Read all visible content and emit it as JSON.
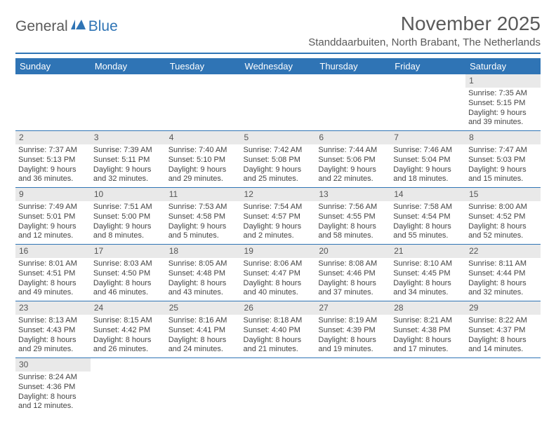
{
  "logo": {
    "part1": "General",
    "part2": "Blue"
  },
  "title": "November 2025",
  "location": "Standdaarbuiten, North Brabant, The Netherlands",
  "colors": {
    "accent": "#2f74b5",
    "headerRow": "#e9e9e9",
    "text": "#444"
  },
  "weekdays": [
    "Sunday",
    "Monday",
    "Tuesday",
    "Wednesday",
    "Thursday",
    "Friday",
    "Saturday"
  ],
  "weeks": [
    [
      null,
      null,
      null,
      null,
      null,
      null,
      {
        "n": "1",
        "sr": "Sunrise: 7:35 AM",
        "ss": "Sunset: 5:15 PM",
        "d1": "Daylight: 9 hours",
        "d2": "and 39 minutes."
      }
    ],
    [
      {
        "n": "2",
        "sr": "Sunrise: 7:37 AM",
        "ss": "Sunset: 5:13 PM",
        "d1": "Daylight: 9 hours",
        "d2": "and 36 minutes."
      },
      {
        "n": "3",
        "sr": "Sunrise: 7:39 AM",
        "ss": "Sunset: 5:11 PM",
        "d1": "Daylight: 9 hours",
        "d2": "and 32 minutes."
      },
      {
        "n": "4",
        "sr": "Sunrise: 7:40 AM",
        "ss": "Sunset: 5:10 PM",
        "d1": "Daylight: 9 hours",
        "d2": "and 29 minutes."
      },
      {
        "n": "5",
        "sr": "Sunrise: 7:42 AM",
        "ss": "Sunset: 5:08 PM",
        "d1": "Daylight: 9 hours",
        "d2": "and 25 minutes."
      },
      {
        "n": "6",
        "sr": "Sunrise: 7:44 AM",
        "ss": "Sunset: 5:06 PM",
        "d1": "Daylight: 9 hours",
        "d2": "and 22 minutes."
      },
      {
        "n": "7",
        "sr": "Sunrise: 7:46 AM",
        "ss": "Sunset: 5:04 PM",
        "d1": "Daylight: 9 hours",
        "d2": "and 18 minutes."
      },
      {
        "n": "8",
        "sr": "Sunrise: 7:47 AM",
        "ss": "Sunset: 5:03 PM",
        "d1": "Daylight: 9 hours",
        "d2": "and 15 minutes."
      }
    ],
    [
      {
        "n": "9",
        "sr": "Sunrise: 7:49 AM",
        "ss": "Sunset: 5:01 PM",
        "d1": "Daylight: 9 hours",
        "d2": "and 12 minutes."
      },
      {
        "n": "10",
        "sr": "Sunrise: 7:51 AM",
        "ss": "Sunset: 5:00 PM",
        "d1": "Daylight: 9 hours",
        "d2": "and 8 minutes."
      },
      {
        "n": "11",
        "sr": "Sunrise: 7:53 AM",
        "ss": "Sunset: 4:58 PM",
        "d1": "Daylight: 9 hours",
        "d2": "and 5 minutes."
      },
      {
        "n": "12",
        "sr": "Sunrise: 7:54 AM",
        "ss": "Sunset: 4:57 PM",
        "d1": "Daylight: 9 hours",
        "d2": "and 2 minutes."
      },
      {
        "n": "13",
        "sr": "Sunrise: 7:56 AM",
        "ss": "Sunset: 4:55 PM",
        "d1": "Daylight: 8 hours",
        "d2": "and 58 minutes."
      },
      {
        "n": "14",
        "sr": "Sunrise: 7:58 AM",
        "ss": "Sunset: 4:54 PM",
        "d1": "Daylight: 8 hours",
        "d2": "and 55 minutes."
      },
      {
        "n": "15",
        "sr": "Sunrise: 8:00 AM",
        "ss": "Sunset: 4:52 PM",
        "d1": "Daylight: 8 hours",
        "d2": "and 52 minutes."
      }
    ],
    [
      {
        "n": "16",
        "sr": "Sunrise: 8:01 AM",
        "ss": "Sunset: 4:51 PM",
        "d1": "Daylight: 8 hours",
        "d2": "and 49 minutes."
      },
      {
        "n": "17",
        "sr": "Sunrise: 8:03 AM",
        "ss": "Sunset: 4:50 PM",
        "d1": "Daylight: 8 hours",
        "d2": "and 46 minutes."
      },
      {
        "n": "18",
        "sr": "Sunrise: 8:05 AM",
        "ss": "Sunset: 4:48 PM",
        "d1": "Daylight: 8 hours",
        "d2": "and 43 minutes."
      },
      {
        "n": "19",
        "sr": "Sunrise: 8:06 AM",
        "ss": "Sunset: 4:47 PM",
        "d1": "Daylight: 8 hours",
        "d2": "and 40 minutes."
      },
      {
        "n": "20",
        "sr": "Sunrise: 8:08 AM",
        "ss": "Sunset: 4:46 PM",
        "d1": "Daylight: 8 hours",
        "d2": "and 37 minutes."
      },
      {
        "n": "21",
        "sr": "Sunrise: 8:10 AM",
        "ss": "Sunset: 4:45 PM",
        "d1": "Daylight: 8 hours",
        "d2": "and 34 minutes."
      },
      {
        "n": "22",
        "sr": "Sunrise: 8:11 AM",
        "ss": "Sunset: 4:44 PM",
        "d1": "Daylight: 8 hours",
        "d2": "and 32 minutes."
      }
    ],
    [
      {
        "n": "23",
        "sr": "Sunrise: 8:13 AM",
        "ss": "Sunset: 4:43 PM",
        "d1": "Daylight: 8 hours",
        "d2": "and 29 minutes."
      },
      {
        "n": "24",
        "sr": "Sunrise: 8:15 AM",
        "ss": "Sunset: 4:42 PM",
        "d1": "Daylight: 8 hours",
        "d2": "and 26 minutes."
      },
      {
        "n": "25",
        "sr": "Sunrise: 8:16 AM",
        "ss": "Sunset: 4:41 PM",
        "d1": "Daylight: 8 hours",
        "d2": "and 24 minutes."
      },
      {
        "n": "26",
        "sr": "Sunrise: 8:18 AM",
        "ss": "Sunset: 4:40 PM",
        "d1": "Daylight: 8 hours",
        "d2": "and 21 minutes."
      },
      {
        "n": "27",
        "sr": "Sunrise: 8:19 AM",
        "ss": "Sunset: 4:39 PM",
        "d1": "Daylight: 8 hours",
        "d2": "and 19 minutes."
      },
      {
        "n": "28",
        "sr": "Sunrise: 8:21 AM",
        "ss": "Sunset: 4:38 PM",
        "d1": "Daylight: 8 hours",
        "d2": "and 17 minutes."
      },
      {
        "n": "29",
        "sr": "Sunrise: 8:22 AM",
        "ss": "Sunset: 4:37 PM",
        "d1": "Daylight: 8 hours",
        "d2": "and 14 minutes."
      }
    ],
    [
      {
        "n": "30",
        "sr": "Sunrise: 8:24 AM",
        "ss": "Sunset: 4:36 PM",
        "d1": "Daylight: 8 hours",
        "d2": "and 12 minutes."
      },
      null,
      null,
      null,
      null,
      null,
      null
    ]
  ]
}
